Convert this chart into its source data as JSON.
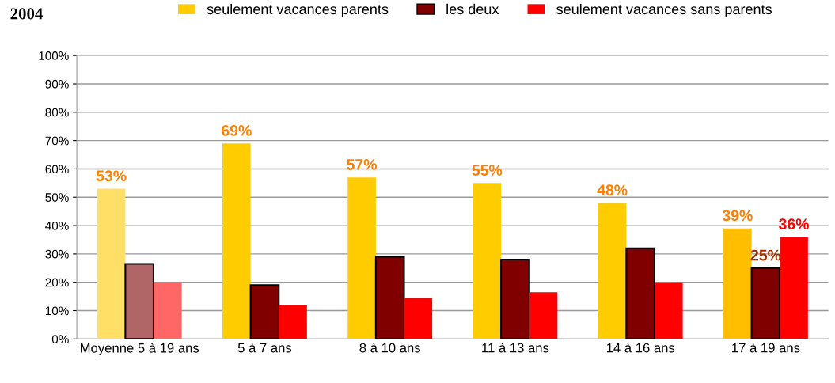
{
  "chart_data": {
    "type": "bar",
    "title": "2004",
    "categories": [
      "Moyenne 5 à 19 ans",
      "5 à 7 ans",
      "8 à 10 ans",
      "11 à 13 ans",
      "14 à 16 ans",
      "17 à 19 ans"
    ],
    "series": [
      {
        "name": "seulement vacances parents",
        "color": "#ffcc00",
        "colors": [
          "#ffdf66",
          "#ffcc00",
          "#ffcc00",
          "#ffcc00",
          "#ffcc00",
          "#ffbf00"
        ],
        "values": [
          53,
          69,
          57,
          55,
          48,
          39
        ],
        "value_labels": [
          "53%",
          "69%",
          "57%",
          "55%",
          "48%",
          "39%"
        ]
      },
      {
        "name": "les deux",
        "color": "#800000",
        "colors": [
          "#b06666",
          "#800000",
          "#800000",
          "#800000",
          "#800000",
          "#800000"
        ],
        "values": [
          26.5,
          19,
          29,
          28,
          32,
          25
        ],
        "value_labels": [
          null,
          null,
          null,
          null,
          null,
          "25%"
        ]
      },
      {
        "name": "seulement vacances sans parents",
        "color": "#ff0000",
        "colors": [
          "#ff6666",
          "#ff0000",
          "#ff0000",
          "#ff0000",
          "#ff0000",
          "#ff0000"
        ],
        "values": [
          20,
          12,
          14.5,
          16.5,
          20,
          36
        ],
        "value_labels": [
          null,
          null,
          null,
          null,
          null,
          "36%"
        ]
      }
    ],
    "ylim": [
      0,
      100
    ],
    "yticks": [
      {
        "value": 0,
        "label": "0%"
      },
      {
        "value": 10,
        "label": "10%"
      },
      {
        "value": 20,
        "label": "20%"
      },
      {
        "value": 30,
        "label": "30%"
      },
      {
        "value": 40,
        "label": "40%"
      },
      {
        "value": 50,
        "label": "50%"
      },
      {
        "value": 60,
        "label": "60%"
      },
      {
        "value": 70,
        "label": "70%"
      },
      {
        "value": 80,
        "label": "80%"
      },
      {
        "value": 90,
        "label": "90%"
      },
      {
        "value": 100,
        "label": "100%"
      }
    ],
    "grid": "y",
    "legend": "top"
  }
}
